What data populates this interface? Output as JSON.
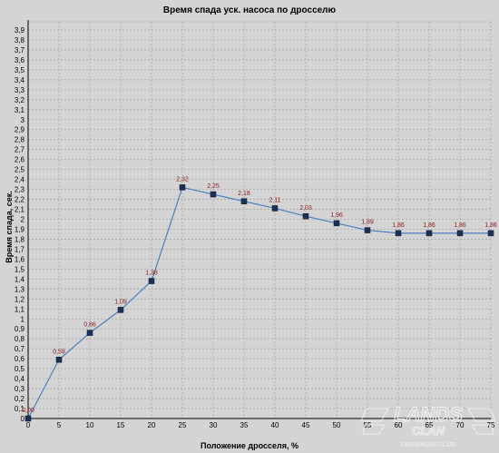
{
  "chart_data": {
    "type": "line",
    "title": "Время спада уск. насоса по дросселю",
    "xlabel": "Положение дросселя, %",
    "ylabel": "Время спада, сек.",
    "x": [
      0,
      5,
      10,
      15,
      20,
      25,
      30,
      35,
      40,
      45,
      50,
      55,
      60,
      65,
      70,
      75
    ],
    "series": [
      {
        "values": [
          0,
          0.59,
          0.86,
          1.09,
          1.38,
          2.32,
          2.25,
          2.18,
          2.11,
          2.03,
          1.96,
          1.89,
          1.86,
          1.86,
          1.86,
          1.86
        ],
        "labels": [
          "0,00",
          "0,59",
          "0,86",
          "1,09",
          "1,38",
          "2,32",
          "2,25",
          "2,18",
          "2,11",
          "2,03",
          "1,96",
          "1,89",
          "1,86",
          "1,86",
          "1,86",
          "1,86"
        ],
        "color": "#4a7fc0"
      }
    ],
    "xticks": [
      "0",
      "5",
      "10",
      "15",
      "20",
      "25",
      "30",
      "35",
      "40",
      "45",
      "50",
      "55",
      "60",
      "65",
      "70",
      "75"
    ],
    "yticks": [
      "0",
      "0,1",
      "0,2",
      "0,3",
      "0,4",
      "0,5",
      "0,6",
      "0,7",
      "0,8",
      "0,9",
      "1",
      "1,1",
      "1,2",
      "1,3",
      "1,4",
      "1,5",
      "1,6",
      "1,7",
      "1,8",
      "1,9",
      "2",
      "2,1",
      "2,2",
      "2,3",
      "2,4",
      "2,5",
      "2,6",
      "2,7",
      "2,8",
      "2,9",
      "3",
      "3,1",
      "3,2",
      "3,3",
      "3,4",
      "3,5",
      "3,6",
      "3,7",
      "3,8",
      "3,9"
    ],
    "xlim": [
      0,
      75
    ],
    "ylim": [
      0,
      3.9
    ],
    "grid": true,
    "colors": {
      "background": "#d4d4d4",
      "grid": "#a8a8a8",
      "line": "#4a7fc0",
      "marker": "#1c2f55",
      "data_label": "#8b1a1a"
    }
  },
  "watermark": {
    "text_main": "LANDS",
    "text_sub": "CLAN",
    "text_bottom": "UKRAINIAN CLUB"
  }
}
